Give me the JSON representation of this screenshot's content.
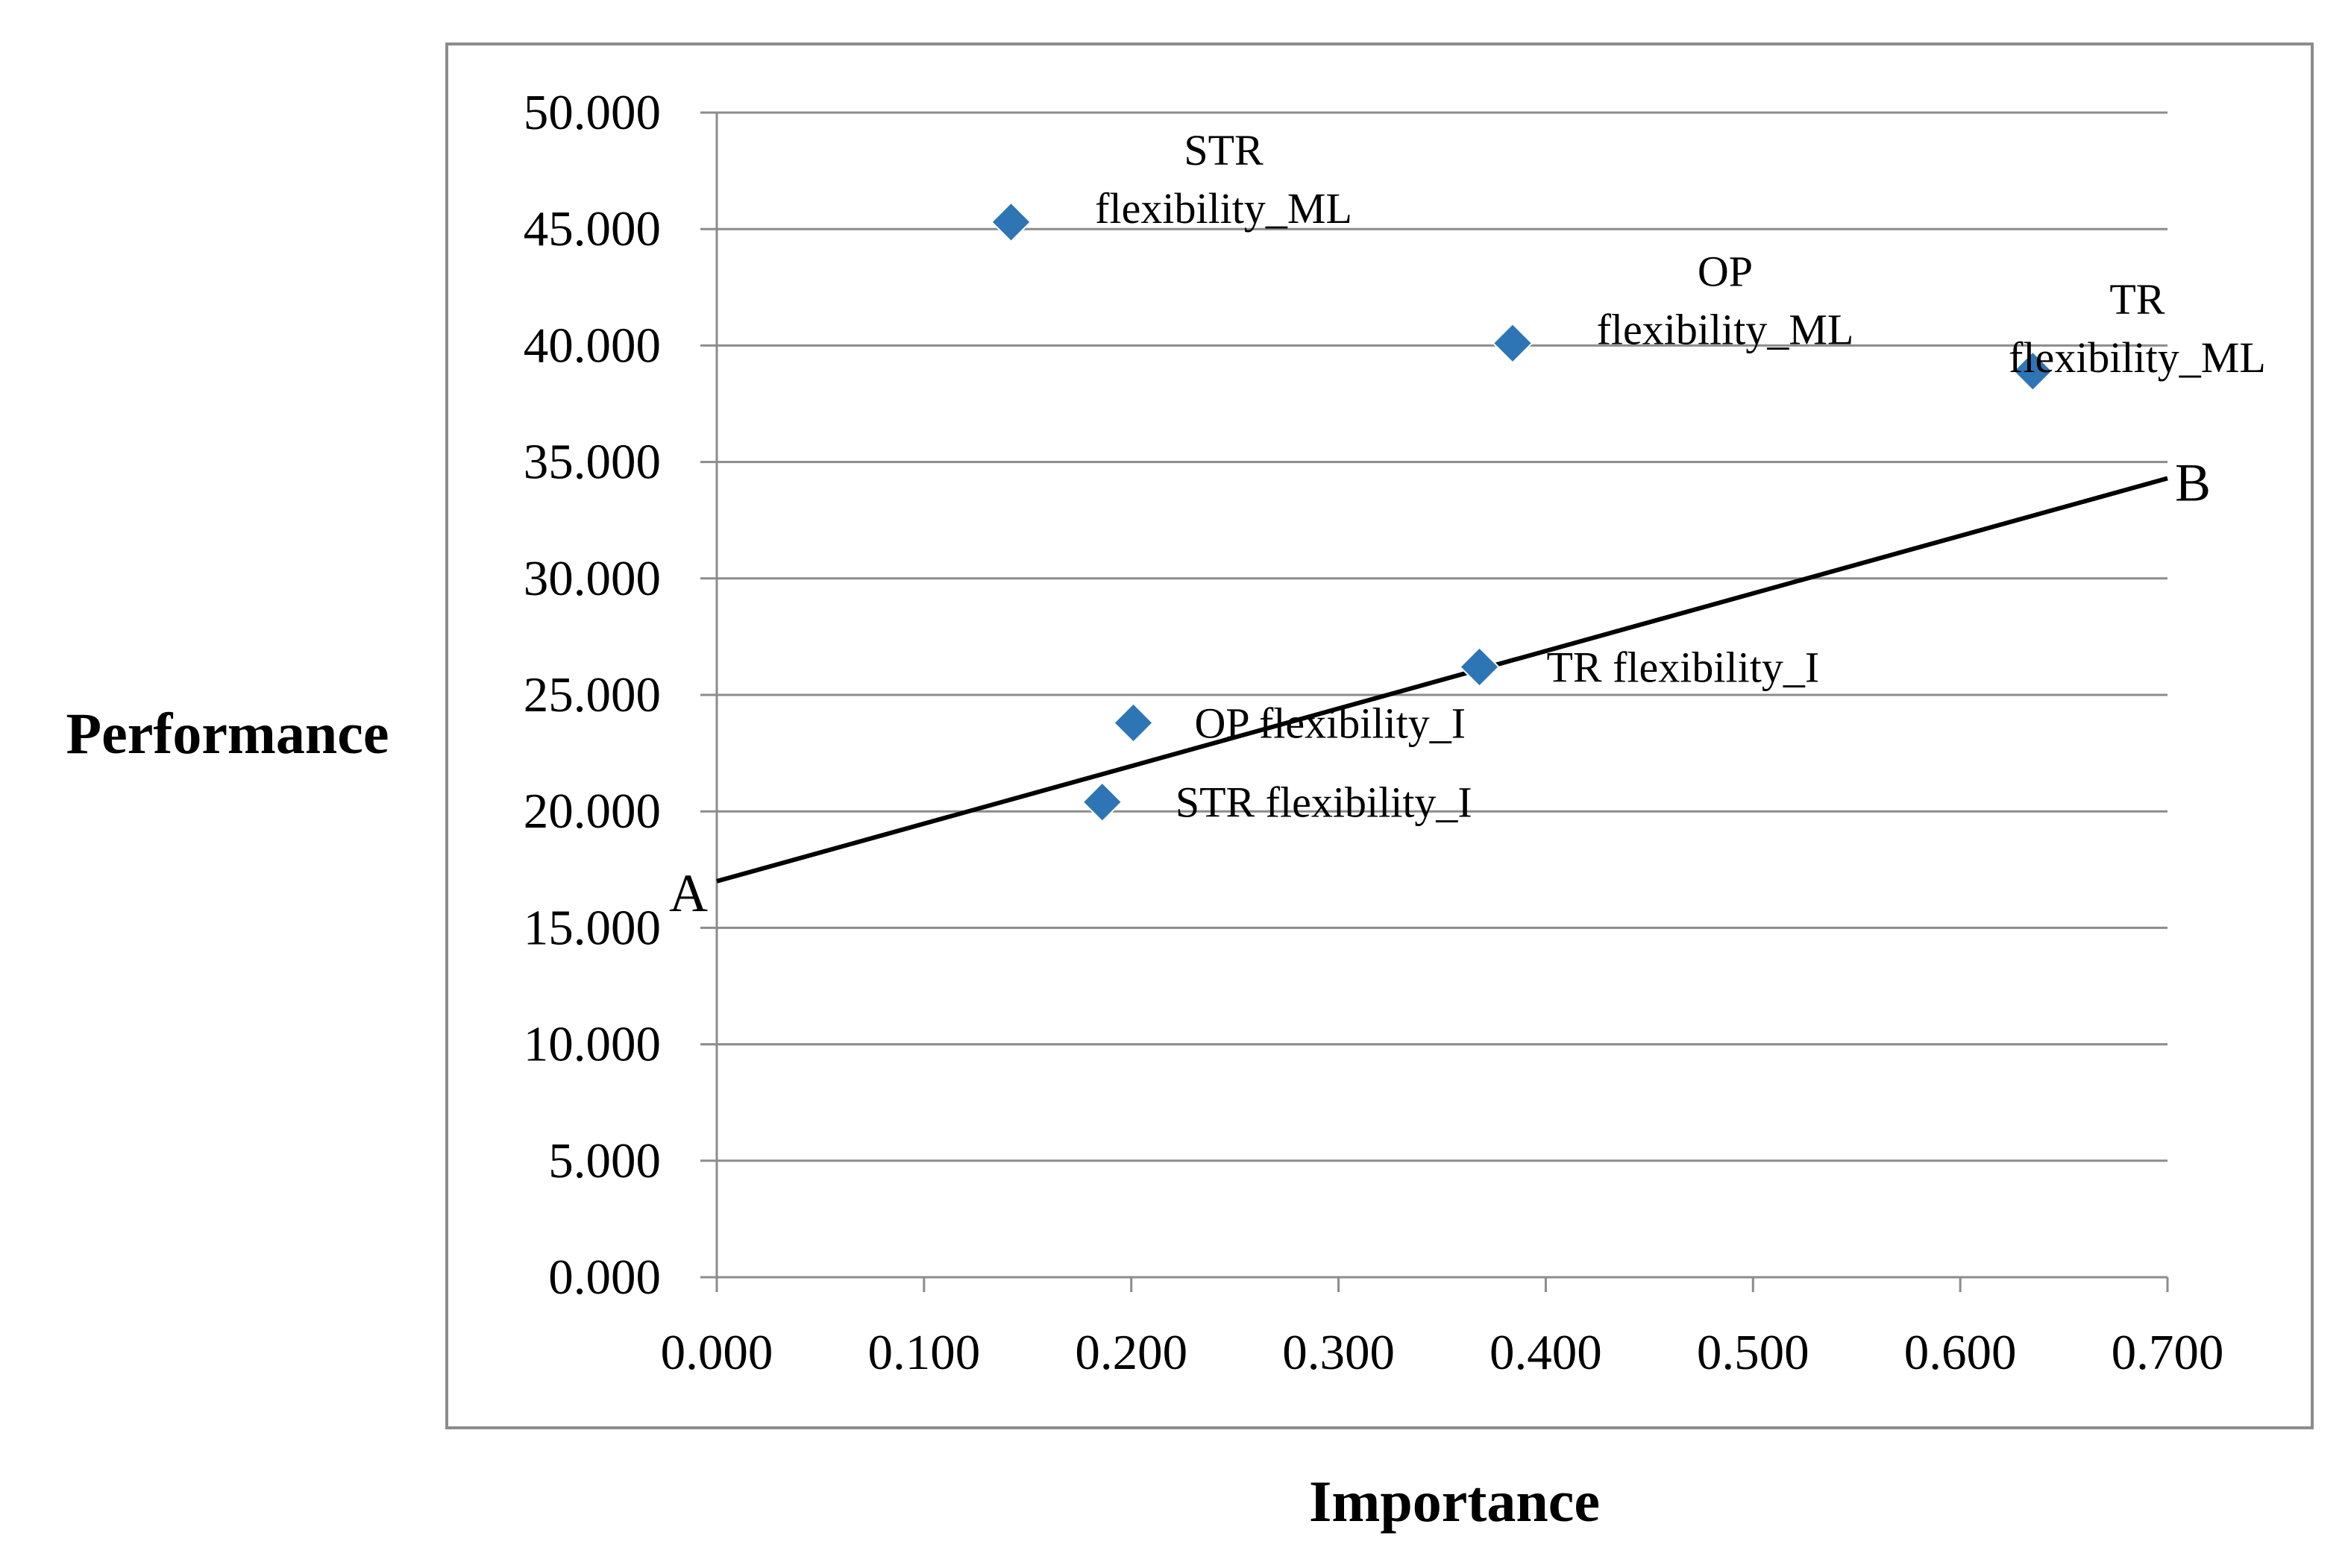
{
  "chart_data": {
    "type": "scatter",
    "xlabel": "Importance",
    "ylabel": "Performance",
    "xlim": [
      0.0,
      0.7
    ],
    "ylim": [
      0.0,
      50.0
    ],
    "x_ticks": [
      "0.000",
      "0.100",
      "0.200",
      "0.300",
      "0.400",
      "0.500",
      "0.600",
      "0.700"
    ],
    "y_ticks": [
      "0.000",
      "5.000",
      "10.000",
      "15.000",
      "20.000",
      "25.000",
      "30.000",
      "35.000",
      "40.000",
      "45.000",
      "50.000"
    ],
    "grid": "horizontal",
    "marker": "diamond",
    "marker_color": "#2e75b6",
    "points": [
      {
        "label": [
          "STR",
          "flexibility_ML"
        ],
        "x": 0.142,
        "y": 45.3
      },
      {
        "label": [
          "OP",
          "flexibility_ML"
        ],
        "x": 0.384,
        "y": 40.1
      },
      {
        "label": [
          "TR",
          "flexibility_ML"
        ],
        "x": 0.635,
        "y": 38.9
      },
      {
        "label": [
          "TR flexibility_I"
        ],
        "x": 0.368,
        "y": 26.2
      },
      {
        "label": [
          "OP flexibility_I"
        ],
        "x": 0.201,
        "y": 23.8
      },
      {
        "label": [
          "STR flexibility_I"
        ],
        "x": 0.186,
        "y": 20.4
      }
    ],
    "line": {
      "start": {
        "label": "A",
        "x": 0.0,
        "y": 17.0
      },
      "end": {
        "label": "B",
        "x": 0.7,
        "y": 34.3
      },
      "color": "#000000"
    }
  }
}
